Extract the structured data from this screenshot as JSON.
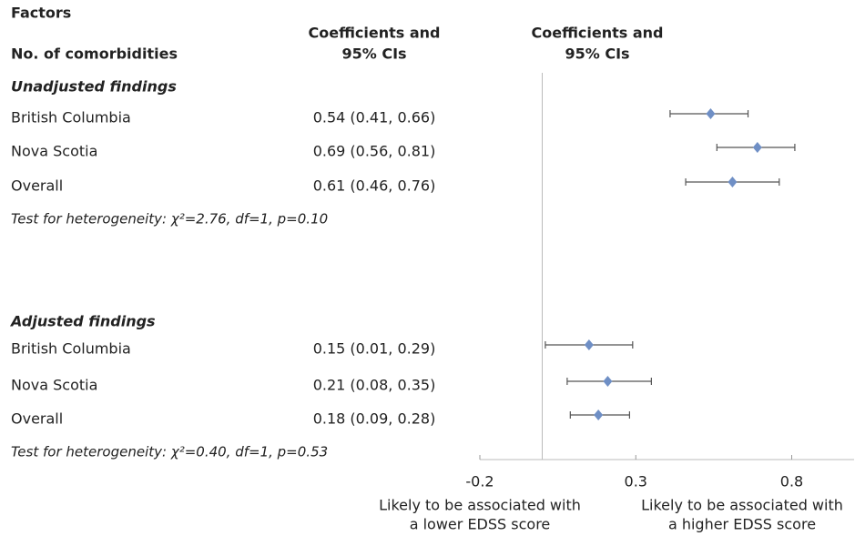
{
  "chart_data": {
    "type": "forest",
    "title": "Factors",
    "row_header": "No. of comorbidities",
    "column_header": [
      "Coefficients and",
      "95% CIs"
    ],
    "plot_header": [
      "Coefficients and",
      "95% CIs"
    ],
    "xlim": [
      -0.2,
      1.0
    ],
    "xticks": [
      -0.2,
      0.3,
      0.8
    ],
    "reference_line": 0,
    "color": "#6f8fc5",
    "lower_label": [
      "Likely to be associated with",
      "a lower EDSS score"
    ],
    "higher_label": [
      "Likely to be associated with",
      "a higher EDSS score"
    ],
    "sections": [
      {
        "title": "Unadjusted findings",
        "categories": [
          "British Columbia",
          "Nova Scotia",
          "Overall"
        ],
        "values": [
          0.54,
          0.69,
          0.61
        ],
        "lower": [
          0.41,
          0.56,
          0.46
        ],
        "upper": [
          0.66,
          0.81,
          0.76
        ],
        "value_labels": [
          "0.54 (0.41, 0.66)",
          "0.69 (0.56, 0.81)",
          "0.61 (0.46, 0.76)"
        ],
        "note": "Test for heterogeneity:  χ²=2.76, df=1, p=0.10"
      },
      {
        "title": "Adjusted findings",
        "categories": [
          "British Columbia",
          "Nova Scotia",
          "Overall"
        ],
        "values": [
          0.15,
          0.21,
          0.18
        ],
        "lower": [
          0.01,
          0.08,
          0.09
        ],
        "upper": [
          0.29,
          0.35,
          0.28
        ],
        "value_labels": [
          "0.15 (0.01, 0.29)",
          "0.21 (0.08, 0.35)",
          "0.18 (0.09, 0.28)"
        ],
        "note": "Test for heterogeneity:  χ²=0.40, df=1, p=0.53"
      }
    ]
  }
}
